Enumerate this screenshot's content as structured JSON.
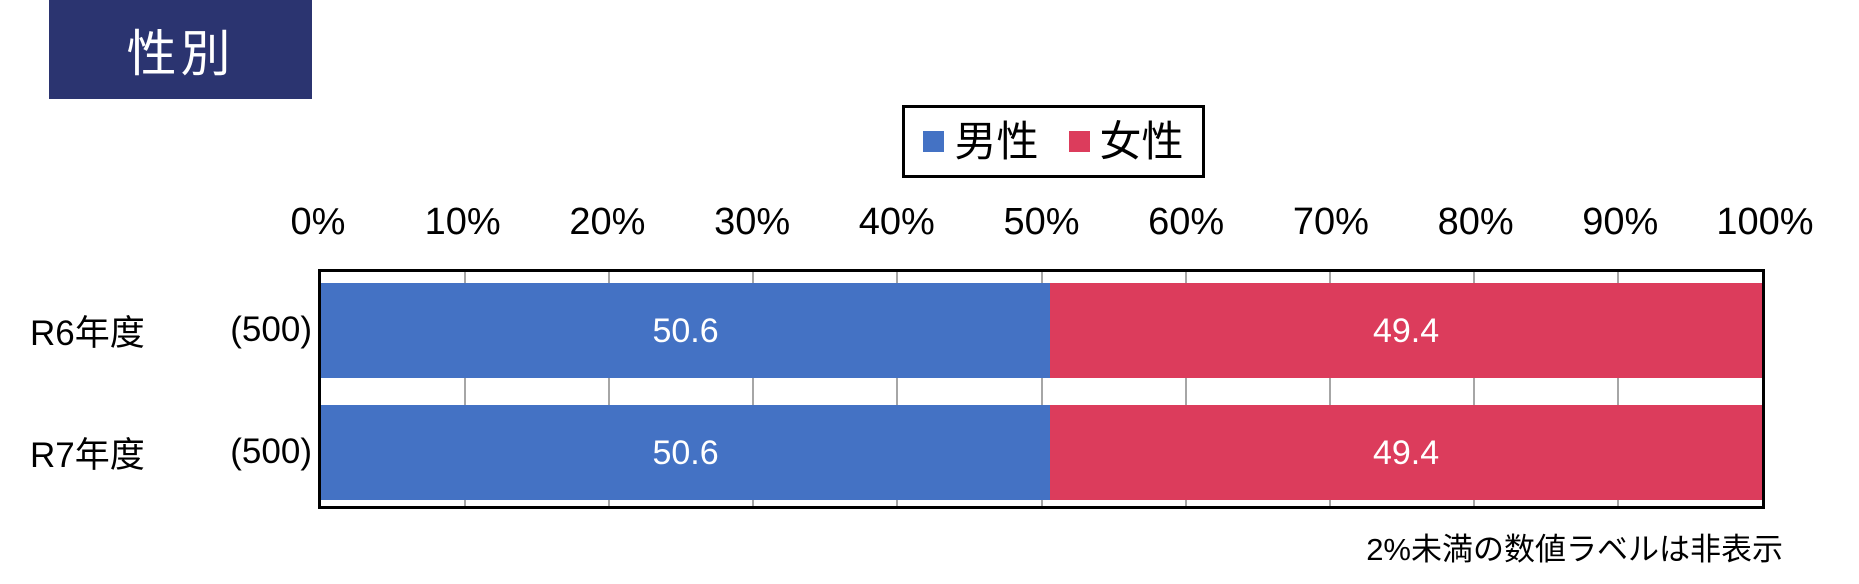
{
  "page": {
    "background_color": "#ffffff"
  },
  "title": {
    "label": "性別",
    "bg_color": "#2b3470",
    "text_color": "#ffffff"
  },
  "legend": {
    "position": "top-center",
    "border_color": "#000000"
  },
  "footnote": "2%未満の数値ラベルは非表示",
  "chart_data": {
    "type": "bar",
    "orientation": "horizontal",
    "stacked": true,
    "title": "性別",
    "categories": [
      "R6年度",
      "R7年度"
    ],
    "category_counts": [
      "(500)",
      "(500)"
    ],
    "series": [
      {
        "name": "男性",
        "color": "#4472c4",
        "values": [
          50.6,
          50.6
        ]
      },
      {
        "name": "女性",
        "color": "#dc3c5c",
        "values": [
          49.4,
          49.4
        ]
      }
    ],
    "x_ticks": [
      "0%",
      "10%",
      "20%",
      "30%",
      "40%",
      "50%",
      "60%",
      "70%",
      "80%",
      "90%",
      "100%"
    ],
    "xlim": [
      0,
      100
    ],
    "grid": true,
    "gridline_color": "#a6a6a6",
    "plot_border_color": "#000000",
    "value_label_color": "#ffffff",
    "value_label_hide_below": 2,
    "legend_position": "top",
    "note": "2%未満の数値ラベルは非表示"
  }
}
